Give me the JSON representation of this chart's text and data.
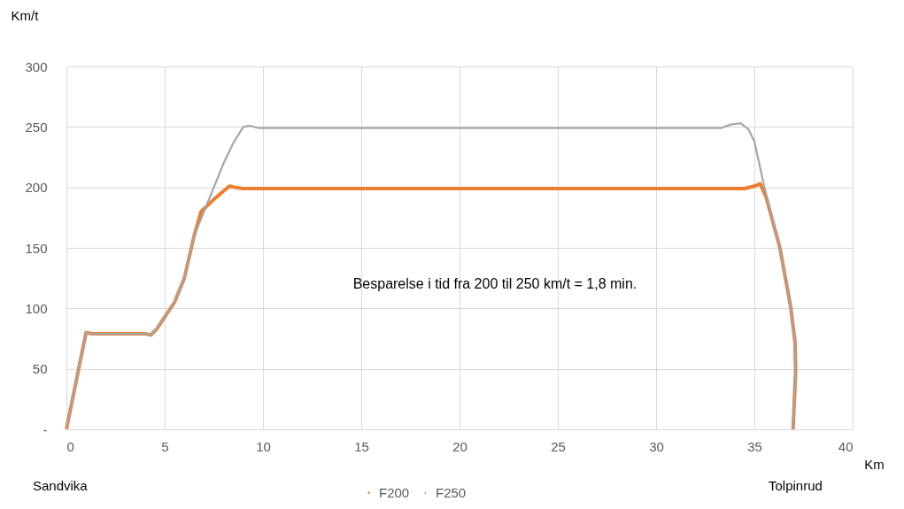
{
  "chart_data": {
    "type": "line",
    "xlabel": "Km",
    "ylabel": "Km/t",
    "xlim": [
      0,
      40
    ],
    "xticks": [
      0,
      5,
      10,
      15,
      20,
      25,
      30,
      35,
      40
    ],
    "ylim": [
      0,
      300
    ],
    "yticks": [
      {
        "value": 0,
        "label": "-"
      },
      50,
      100,
      150,
      200,
      250,
      300
    ],
    "grid": true,
    "legend": "bottom",
    "line_style": "solid",
    "marker": "none",
    "annotations": [
      "Besparelse i tid fra 200 til 250 km/t = 1,8 min.",
      "Sandvika",
      "Tolpinrud"
    ],
    "series": [
      {
        "name": "F200",
        "color": "#ed7d31",
        "x": [
          0,
          0.5,
          1.0,
          1.3,
          4.0,
          4.3,
          4.6,
          5.5,
          6.0,
          6.5,
          6.85,
          7.5,
          8.0,
          8.3,
          8.6,
          9.0,
          34.5,
          35.0,
          35.3,
          35.6,
          36.0,
          36.3,
          36.85,
          37.07,
          37.1,
          36.97
        ],
        "values": [
          0,
          40,
          80,
          79,
          79,
          78,
          83,
          105,
          125,
          160,
          180,
          190,
          197,
          201,
          200,
          199,
          199,
          201,
          203,
          192,
          168,
          150,
          101,
          72,
          48,
          0
        ]
      },
      {
        "name": "F250",
        "color": "#a5a5a5",
        "x": [
          0,
          0.5,
          1.0,
          1.3,
          4.0,
          4.3,
          4.6,
          5.5,
          6.0,
          6.5,
          7.0,
          7.5,
          8.0,
          8.5,
          9.0,
          9.3,
          9.8,
          33.3,
          33.8,
          34.3,
          34.7,
          35.0,
          35.5,
          36.0,
          36.3,
          36.85,
          37.07,
          37.1,
          36.97
        ],
        "values": [
          0,
          40,
          80,
          79,
          79,
          78,
          83,
          105,
          125,
          160,
          180,
          200,
          220,
          237,
          250,
          251,
          249,
          249,
          252,
          253,
          248,
          238,
          201,
          168,
          150,
          101,
          72,
          48,
          0
        ]
      }
    ]
  }
}
